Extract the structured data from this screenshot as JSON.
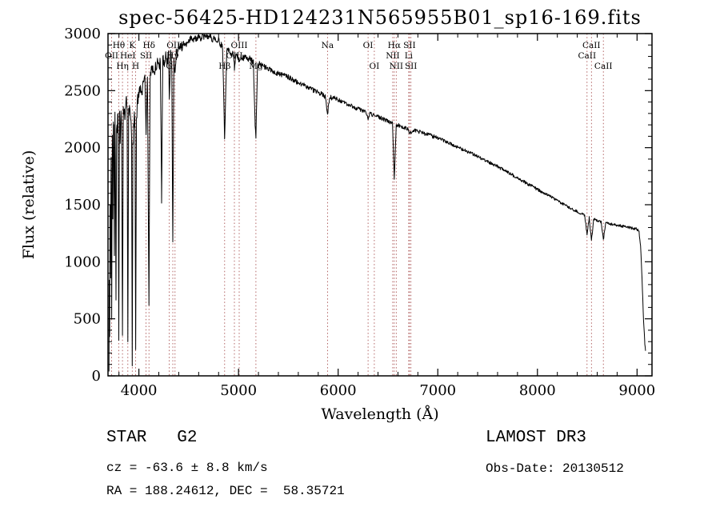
{
  "colors": {
    "background": "#ffffff",
    "spectrum": "#000000",
    "axis": "#000000",
    "marker": "#a04040",
    "marker_label": "#8b2020"
  },
  "annotations": {
    "class_label": "STAR   G2",
    "survey": "LAMOST DR3",
    "cz": "cz = -63.6 ± 8.8 km/s",
    "obs_date": "Obs-Date: 20130512",
    "radec": "RA = 188.24612, DEC =  58.35721"
  },
  "chart_data": {
    "type": "line",
    "title": "spec-56425-HD124231N565955B01_sp16-169.fits",
    "xlabel": "Wavelength (Å)",
    "ylabel": "Flux (relative)",
    "xlim": [
      3690,
      9150
    ],
    "ylim": [
      0,
      3000
    ],
    "xticks": [
      4000,
      5000,
      6000,
      7000,
      8000,
      9000
    ],
    "yticks": [
      0,
      500,
      1000,
      1500,
      2000,
      2500,
      3000
    ],
    "grid": false,
    "legend": "none",
    "line_markers": [
      {
        "label": "OII",
        "wavelength": 3727,
        "row": 2
      },
      {
        "label": "Hθ",
        "wavelength": 3798,
        "row": 1
      },
      {
        "label": "Hη",
        "wavelength": 3835,
        "row": 3
      },
      {
        "label": "HeI",
        "wavelength": 3889,
        "row": 2
      },
      {
        "label": "K",
        "wavelength": 3933,
        "row": 1
      },
      {
        "label": "H",
        "wavelength": 3968,
        "row": 3
      },
      {
        "label": "SII",
        "wavelength": 4072,
        "row": 2
      },
      {
        "label": "Hδ",
        "wavelength": 4101,
        "row": 1
      },
      {
        "label": "G",
        "wavelength": 4305,
        "row": 3
      },
      {
        "label": "Hγ",
        "wavelength": 4340,
        "row": 2
      },
      {
        "label": "OIII",
        "wavelength": 4363,
        "row": 1
      },
      {
        "label": "Hβ",
        "wavelength": 4861,
        "row": 3
      },
      {
        "label": "OIII",
        "wavelength": 4959,
        "row": 2
      },
      {
        "label": "OIII",
        "wavelength": 5007,
        "row": 1
      },
      {
        "label": "Mg",
        "wavelength": 5175,
        "row": 3
      },
      {
        "label": "Na",
        "wavelength": 5893,
        "row": 1
      },
      {
        "label": "OI",
        "wavelength": 6300,
        "row": 1
      },
      {
        "label": "OI",
        "wavelength": 6363,
        "row": 3
      },
      {
        "label": "NII",
        "wavelength": 6548,
        "row": 2
      },
      {
        "label": "Hα",
        "wavelength": 6563,
        "row": 1
      },
      {
        "label": "NII",
        "wavelength": 6583,
        "row": 3
      },
      {
        "label": "Li",
        "wavelength": 6708,
        "row": 2
      },
      {
        "label": "SII",
        "wavelength": 6716,
        "row": 1
      },
      {
        "label": "SII",
        "wavelength": 6731,
        "row": 3
      },
      {
        "label": "CaII",
        "wavelength": 8498,
        "row": 2
      },
      {
        "label": "CaII",
        "wavelength": 8542,
        "row": 1
      },
      {
        "label": "CaII",
        "wavelength": 8662,
        "row": 3
      }
    ],
    "spectrum_anchors": [
      [
        3700,
        30
      ],
      [
        3703,
        880
      ],
      [
        3707,
        350
      ],
      [
        3711,
        1500
      ],
      [
        3716,
        800
      ],
      [
        3721,
        1950
      ],
      [
        3727,
        550
      ],
      [
        3733,
        2100
      ],
      [
        3738,
        1450
      ],
      [
        3744,
        2250
      ],
      [
        3749,
        2150
      ],
      [
        3754,
        1050
      ],
      [
        3760,
        2300
      ],
      [
        3765,
        1700
      ],
      [
        3770,
        650
      ],
      [
        3776,
        2200
      ],
      [
        3783,
        2100
      ],
      [
        3790,
        2300
      ],
      [
        3798,
        380
      ],
      [
        3806,
        2250
      ],
      [
        3812,
        2100
      ],
      [
        3820,
        2350
      ],
      [
        3827,
        2250
      ],
      [
        3835,
        280
      ],
      [
        3843,
        2280
      ],
      [
        3851,
        2380
      ],
      [
        3860,
        2300
      ],
      [
        3868,
        2420
      ],
      [
        3875,
        2380
      ],
      [
        3882,
        2300
      ],
      [
        3889,
        230
      ],
      [
        3897,
        2320
      ],
      [
        3905,
        2400
      ],
      [
        3913,
        2350
      ],
      [
        3921,
        2280
      ],
      [
        3927,
        2100
      ],
      [
        3933,
        130
      ],
      [
        3940,
        2000
      ],
      [
        3947,
        2180
      ],
      [
        3954,
        2250
      ],
      [
        3961,
        2150
      ],
      [
        3968,
        300
      ],
      [
        3976,
        2300
      ],
      [
        3984,
        2380
      ],
      [
        3992,
        2420
      ],
      [
        4000,
        2470
      ],
      [
        4015,
        2540
      ],
      [
        4030,
        2480
      ],
      [
        4045,
        2560
      ],
      [
        4060,
        2620
      ],
      [
        4072,
        2150
      ],
      [
        4086,
        2640
      ],
      [
        4101,
        620
      ],
      [
        4112,
        2620
      ],
      [
        4126,
        2680
      ],
      [
        4140,
        2700
      ],
      [
        4155,
        2660
      ],
      [
        4170,
        2720
      ],
      [
        4186,
        2740
      ],
      [
        4200,
        2700
      ],
      [
        4215,
        2760
      ],
      [
        4228,
        1550
      ],
      [
        4240,
        2780
      ],
      [
        4255,
        2740
      ],
      [
        4270,
        2800
      ],
      [
        4284,
        2760
      ],
      [
        4298,
        2820
      ],
      [
        4305,
        2400
      ],
      [
        4318,
        2830
      ],
      [
        4330,
        2750
      ],
      [
        4340,
        1200
      ],
      [
        4352,
        2820
      ],
      [
        4363,
        2640
      ],
      [
        4375,
        2860
      ],
      [
        4388,
        2830
      ],
      [
        4400,
        2880
      ],
      [
        4420,
        2900
      ],
      [
        4440,
        2870
      ],
      [
        4460,
        2920
      ],
      [
        4480,
        2890
      ],
      [
        4500,
        2940
      ],
      [
        4520,
        2960
      ],
      [
        4540,
        2930
      ],
      [
        4560,
        2970
      ],
      [
        4580,
        2950
      ],
      [
        4600,
        2980
      ],
      [
        4620,
        2960
      ],
      [
        4640,
        2990
      ],
      [
        4660,
        2970
      ],
      [
        4680,
        2985
      ],
      [
        4700,
        2960
      ],
      [
        4720,
        2975
      ],
      [
        4740,
        2945
      ],
      [
        4760,
        2960
      ],
      [
        4780,
        2930
      ],
      [
        4800,
        2945
      ],
      [
        4820,
        2905
      ],
      [
        4840,
        2885
      ],
      [
        4861,
        2060
      ],
      [
        4882,
        2865
      ],
      [
        4900,
        2850
      ],
      [
        4925,
        2830
      ],
      [
        4950,
        2810
      ],
      [
        4959,
        2700
      ],
      [
        4975,
        2815
      ],
      [
        4990,
        2800
      ],
      [
        5007,
        2760
      ],
      [
        5025,
        2800
      ],
      [
        5050,
        2785
      ],
      [
        5075,
        2795
      ],
      [
        5100,
        2780
      ],
      [
        5125,
        2770
      ],
      [
        5150,
        2740
      ],
      [
        5167,
        2200
      ],
      [
        5175,
        2090
      ],
      [
        5190,
        2720
      ],
      [
        5210,
        2740
      ],
      [
        5235,
        2720
      ],
      [
        5260,
        2710
      ],
      [
        5285,
        2700
      ],
      [
        5300,
        2695
      ],
      [
        5330,
        2680
      ],
      [
        5360,
        2665
      ],
      [
        5390,
        2650
      ],
      [
        5420,
        2645
      ],
      [
        5450,
        2635
      ],
      [
        5480,
        2625
      ],
      [
        5510,
        2615
      ],
      [
        5540,
        2600
      ],
      [
        5570,
        2585
      ],
      [
        5600,
        2570
      ],
      [
        5630,
        2555
      ],
      [
        5660,
        2545
      ],
      [
        5690,
        2530
      ],
      [
        5720,
        2515
      ],
      [
        5750,
        2505
      ],
      [
        5780,
        2490
      ],
      [
        5810,
        2480
      ],
      [
        5840,
        2465
      ],
      [
        5870,
        2450
      ],
      [
        5893,
        2290
      ],
      [
        5915,
        2445
      ],
      [
        5940,
        2435
      ],
      [
        5970,
        2430
      ],
      [
        6000,
        2420
      ],
      [
        6040,
        2400
      ],
      [
        6080,
        2385
      ],
      [
        6120,
        2370
      ],
      [
        6160,
        2355
      ],
      [
        6200,
        2340
      ],
      [
        6240,
        2325
      ],
      [
        6280,
        2310
      ],
      [
        6300,
        2255
      ],
      [
        6320,
        2300
      ],
      [
        6360,
        2285
      ],
      [
        6400,
        2270
      ],
      [
        6440,
        2255
      ],
      [
        6480,
        2240
      ],
      [
        6520,
        2225
      ],
      [
        6545,
        2215
      ],
      [
        6563,
        1720
      ],
      [
        6583,
        2195
      ],
      [
        6610,
        2195
      ],
      [
        6640,
        2185
      ],
      [
        6670,
        2175
      ],
      [
        6700,
        2165
      ],
      [
        6716,
        2135
      ],
      [
        6731,
        2135
      ],
      [
        6755,
        2155
      ],
      [
        6780,
        2150
      ],
      [
        6800,
        2145
      ],
      [
        6850,
        2130
      ],
      [
        6900,
        2115
      ],
      [
        6950,
        2100
      ],
      [
        7000,
        2085
      ],
      [
        7050,
        2065
      ],
      [
        7100,
        2045
      ],
      [
        7150,
        2025
      ],
      [
        7200,
        2005
      ],
      [
        7250,
        1985
      ],
      [
        7300,
        1965
      ],
      [
        7350,
        1945
      ],
      [
        7400,
        1925
      ],
      [
        7450,
        1900
      ],
      [
        7500,
        1880
      ],
      [
        7550,
        1855
      ],
      [
        7600,
        1835
      ],
      [
        7650,
        1810
      ],
      [
        7700,
        1785
      ],
      [
        7750,
        1760
      ],
      [
        7800,
        1735
      ],
      [
        7850,
        1710
      ],
      [
        7900,
        1685
      ],
      [
        7950,
        1660
      ],
      [
        8000,
        1635
      ],
      [
        8050,
        1610
      ],
      [
        8100,
        1585
      ],
      [
        8150,
        1560
      ],
      [
        8200,
        1535
      ],
      [
        8250,
        1510
      ],
      [
        8300,
        1485
      ],
      [
        8350,
        1460
      ],
      [
        8400,
        1440
      ],
      [
        8450,
        1420
      ],
      [
        8475,
        1405
      ],
      [
        8498,
        1240
      ],
      [
        8520,
        1390
      ],
      [
        8542,
        1190
      ],
      [
        8565,
        1375
      ],
      [
        8590,
        1365
      ],
      [
        8615,
        1355
      ],
      [
        8640,
        1350
      ],
      [
        8662,
        1190
      ],
      [
        8685,
        1340
      ],
      [
        8710,
        1335
      ],
      [
        8740,
        1330
      ],
      [
        8770,
        1325
      ],
      [
        8800,
        1320
      ],
      [
        8830,
        1315
      ],
      [
        8860,
        1310
      ],
      [
        8890,
        1305
      ],
      [
        8920,
        1300
      ],
      [
        8950,
        1295
      ],
      [
        8975,
        1290
      ],
      [
        9000,
        1285
      ],
      [
        9020,
        1260
      ],
      [
        9035,
        1150
      ],
      [
        9050,
        850
      ],
      [
        9065,
        500
      ],
      [
        9078,
        280
      ],
      [
        9085,
        230
      ]
    ]
  }
}
